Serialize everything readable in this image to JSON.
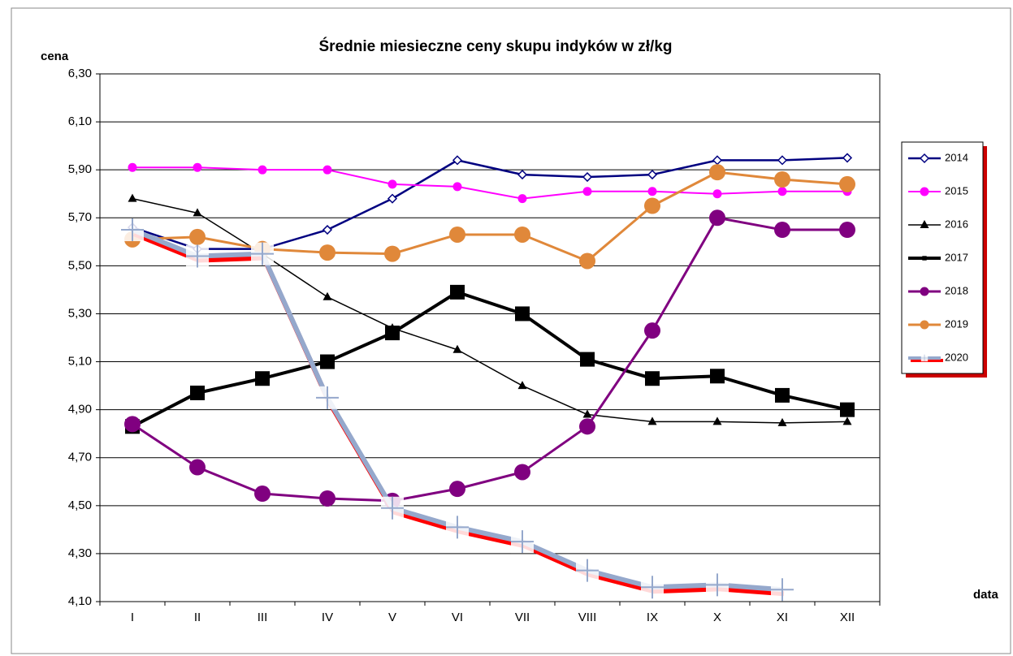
{
  "chart_data": {
    "type": "line",
    "title": "Średnie miesieczne ceny skupu indyków w zł/kg",
    "y_label": "cena",
    "x_label": "data",
    "categories": [
      "I",
      "II",
      "III",
      "IV",
      "V",
      "VI",
      "VII",
      "VIII",
      "IX",
      "X",
      "XI",
      "XII"
    ],
    "ylim": [
      4.1,
      6.3
    ],
    "yticks": [
      {
        "value": 4.1,
        "label": "4,10"
      },
      {
        "value": 4.3,
        "label": "4,30"
      },
      {
        "value": 4.5,
        "label": "4,50"
      },
      {
        "value": 4.7,
        "label": "4,70"
      },
      {
        "value": 4.9,
        "label": "4,90"
      },
      {
        "value": 5.1,
        "label": "5,10"
      },
      {
        "value": 5.3,
        "label": "5,30"
      },
      {
        "value": 5.5,
        "label": "5,50"
      },
      {
        "value": 5.7,
        "label": "5,70"
      },
      {
        "value": 5.9,
        "label": "5,90"
      },
      {
        "value": 6.1,
        "label": "6,10"
      },
      {
        "value": 6.3,
        "label": "6,30"
      }
    ],
    "grid": true,
    "legend": "right",
    "series": [
      {
        "name": "2014",
        "color": "#000080",
        "marker": "diamond",
        "values": [
          5.66,
          5.57,
          5.57,
          5.65,
          5.78,
          5.94,
          5.88,
          5.87,
          5.88,
          5.94,
          5.94,
          5.95
        ]
      },
      {
        "name": "2015",
        "color": "#ff00ff",
        "marker": "circle",
        "values": [
          5.91,
          5.91,
          5.9,
          5.9,
          5.84,
          5.83,
          5.78,
          5.81,
          5.81,
          5.8,
          5.81,
          5.81
        ]
      },
      {
        "name": "2016",
        "color": "#000000",
        "marker": "triangle",
        "values": [
          5.78,
          5.72,
          5.55,
          5.37,
          5.24,
          5.15,
          5.0,
          4.88,
          4.85,
          4.85,
          4.845,
          4.85
        ]
      },
      {
        "name": "2017",
        "color": "#000000",
        "marker": "square",
        "values": [
          4.83,
          4.97,
          5.03,
          5.1,
          5.22,
          5.39,
          5.3,
          5.11,
          5.03,
          5.04,
          4.96,
          4.9
        ]
      },
      {
        "name": "2018",
        "color": "#800080",
        "marker": "big-circle",
        "values": [
          4.84,
          4.66,
          4.55,
          4.53,
          4.52,
          4.57,
          4.64,
          4.83,
          5.23,
          5.7,
          5.65,
          5.65
        ]
      },
      {
        "name": "2019",
        "color": "#e0883a",
        "marker": "big-circle",
        "values": [
          5.61,
          5.62,
          5.57,
          5.555,
          5.55,
          5.63,
          5.63,
          5.52,
          5.75,
          5.89,
          5.86,
          5.84
        ]
      },
      {
        "name": "2020",
        "color": "#95a8cc",
        "marker": "plus",
        "shadow": "#ff0000",
        "values": [
          5.65,
          5.54,
          5.55,
          4.95,
          4.49,
          4.41,
          4.35,
          4.23,
          4.16,
          4.17,
          4.15,
          null
        ]
      }
    ]
  }
}
